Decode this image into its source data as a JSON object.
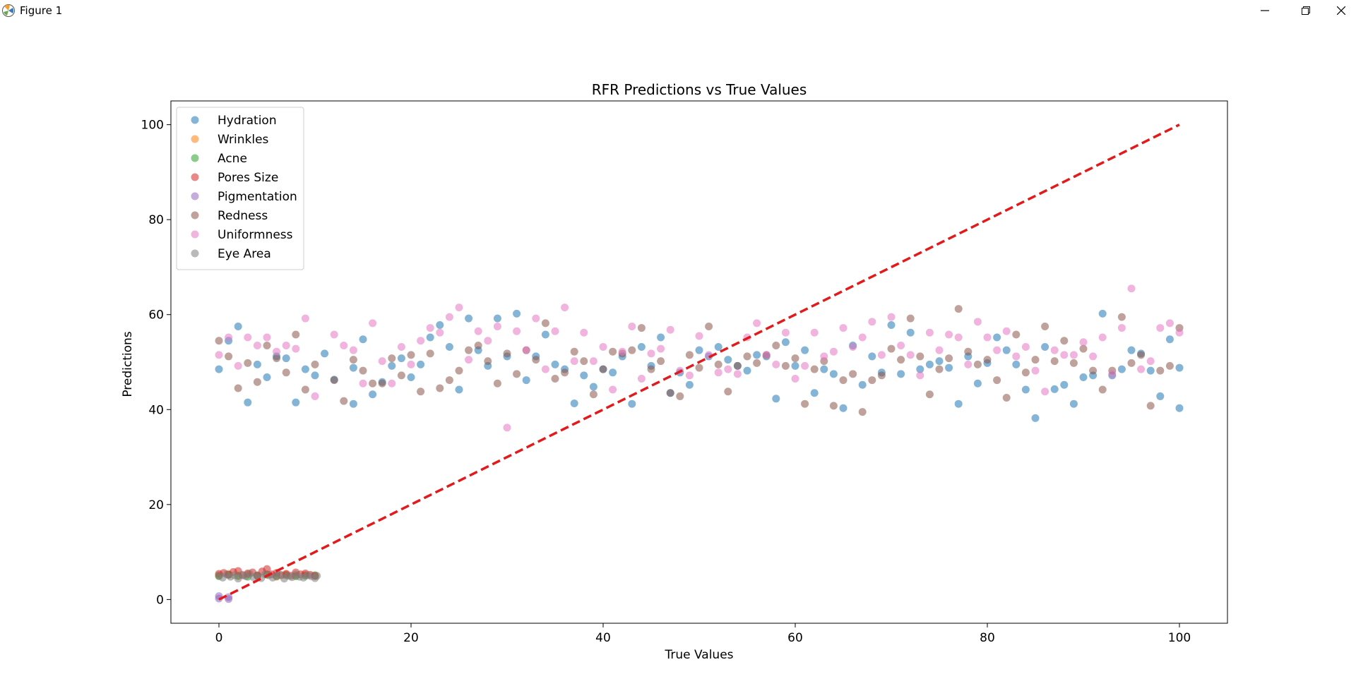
{
  "window": {
    "title": "Figure 1",
    "icons": [
      "matplotlib-logo",
      "minimize-icon",
      "maximize-icon",
      "close-icon"
    ]
  },
  "chart_data": {
    "type": "scatter",
    "title": "RFR Predictions vs True Values",
    "xlabel": "True Values",
    "ylabel": "Predictions",
    "xlim": [
      -5,
      105
    ],
    "ylim": [
      -5,
      105
    ],
    "xticks": [
      0,
      20,
      40,
      60,
      80,
      100
    ],
    "yticks": [
      0,
      20,
      40,
      60,
      80,
      100
    ],
    "legend_position": "top-left",
    "reference_line": {
      "x": [
        0,
        100
      ],
      "y": [
        0,
        100
      ],
      "style": "dashed",
      "color": "#e31a1c"
    },
    "series": [
      {
        "name": "Hydration",
        "color": "#1f77b4",
        "x": [
          0,
          1,
          2,
          3,
          4,
          5,
          6,
          7,
          8,
          9,
          10,
          11,
          12,
          14,
          14,
          15,
          16,
          17,
          18,
          19,
          20,
          21,
          22,
          23,
          24,
          25,
          26,
          27,
          28,
          29,
          30,
          31,
          32,
          33,
          34,
          35,
          36,
          37,
          38,
          39,
          40,
          41,
          42,
          43,
          44,
          45,
          46,
          47,
          48,
          49,
          50,
          51,
          52,
          53,
          54,
          55,
          56,
          57,
          58,
          59,
          60,
          61,
          62,
          63,
          64,
          65,
          66,
          67,
          68,
          69,
          70,
          71,
          72,
          73,
          74,
          75,
          76,
          77,
          78,
          79,
          80,
          81,
          82,
          83,
          84,
          85,
          86,
          87,
          88,
          89,
          90,
          91,
          92,
          93,
          94,
          95,
          96,
          97,
          98,
          99,
          100,
          100
        ],
        "y": [
          48.5,
          54.5,
          57.5,
          41.5,
          49.5,
          46.8,
          51.2,
          50.8,
          41.5,
          48.5,
          47.2,
          51.8,
          46.3,
          41.2,
          48.8,
          54.8,
          43.2,
          45.8,
          49.2,
          50.8,
          46.8,
          49.5,
          55.2,
          57.8,
          53.2,
          44.2,
          59.2,
          52.5,
          49.2,
          59.2,
          51.2,
          60.2,
          46.2,
          51.2,
          55.8,
          49.5,
          48.5,
          41.3,
          47.2,
          44.8,
          48.5,
          47.8,
          51.2,
          41.2,
          53.2,
          49.2,
          55.2,
          43.5,
          47.8,
          45.2,
          52.5,
          51.2,
          53.2,
          50.5,
          49.2,
          48.2,
          51.5,
          51.2,
          42.3,
          54.2,
          49.2,
          52.5,
          43.5,
          48.5,
          47.5,
          40.3,
          53.5,
          45.2,
          51.2,
          47.8,
          57.8,
          47.5,
          56.2,
          48.5,
          49.5,
          50.2,
          48.8,
          41.2,
          51.2,
          45.5,
          49.8,
          55.2,
          52.5,
          49.5,
          44.2,
          38.2,
          53.2,
          44.3,
          45.2,
          41.2,
          46.8,
          47.2,
          60.2,
          47.2,
          48.5,
          52.5,
          51.8,
          48.2,
          42.8,
          54.8,
          40.3,
          48.8
        ]
      },
      {
        "name": "Wrinkles",
        "color": "#ff7f0e",
        "x": [
          0,
          1,
          2,
          3,
          4,
          5,
          6,
          7,
          8,
          9,
          10
        ],
        "y": [
          5.1,
          5.4,
          4.9,
          5.3,
          5.0,
          5.2,
          4.8,
          5.3,
          5.0,
          5.2,
          4.9
        ]
      },
      {
        "name": "Acne",
        "color": "#2ca02c",
        "x": [
          0,
          1,
          2,
          3,
          4,
          5,
          6,
          7,
          8,
          9,
          10
        ],
        "y": [
          4.9,
          5.2,
          5.0,
          4.8,
          5.1,
          5.3,
          5.0,
          5.1,
          4.9,
          5.0,
          5.1
        ]
      },
      {
        "name": "Pores Size",
        "color": "#d62728",
        "x": [
          0,
          0.5,
          1,
          1.5,
          2,
          2.5,
          3,
          3.5,
          4,
          4.5,
          5,
          5.5,
          6,
          6.5,
          7,
          7.5,
          8,
          8.5,
          9,
          9.5,
          10
        ],
        "y": [
          5.4,
          5.6,
          5.2,
          5.8,
          6.0,
          5.1,
          5.5,
          5.7,
          5.0,
          5.9,
          6.4,
          5.3,
          5.6,
          5.1,
          5.4,
          5.0,
          5.7,
          5.3,
          5.5,
          5.2,
          5.0
        ]
      },
      {
        "name": "Pigmentation",
        "color": "#9467bd",
        "x": [
          0,
          0,
          1,
          1
        ],
        "y": [
          0.2,
          0.7,
          0.1,
          0.5
        ]
      },
      {
        "name": "Redness",
        "color": "#8c564b",
        "x": [
          0,
          1,
          2,
          3,
          4,
          5,
          6,
          7,
          8,
          9,
          10,
          12,
          13,
          14,
          15,
          16,
          17,
          18,
          19,
          20,
          21,
          22,
          23,
          24,
          25,
          26,
          27,
          28,
          29,
          30,
          31,
          32,
          33,
          34,
          35,
          36,
          37,
          38,
          39,
          40,
          41,
          42,
          43,
          44,
          45,
          46,
          47,
          48,
          49,
          50,
          51,
          52,
          53,
          54,
          55,
          56,
          57,
          58,
          59,
          60,
          61,
          62,
          63,
          64,
          65,
          66,
          67,
          68,
          69,
          70,
          71,
          72,
          73,
          74,
          75,
          76,
          77,
          78,
          79,
          80,
          81,
          82,
          83,
          84,
          85,
          86,
          87,
          88,
          89,
          90,
          91,
          92,
          93,
          94,
          95,
          96,
          97,
          98,
          99,
          100
        ],
        "y": [
          54.5,
          51.2,
          44.5,
          49.8,
          45.8,
          53.5,
          50.8,
          47.8,
          55.8,
          44.2,
          49.5,
          46.2,
          41.8,
          50.5,
          48.2,
          45.5,
          45.5,
          50.8,
          47.2,
          51.5,
          43.8,
          51.8,
          44.5,
          46.2,
          48.2,
          52.5,
          53.5,
          50.2,
          45.5,
          51.8,
          47.5,
          52.5,
          50.5,
          58.2,
          46.5,
          47.8,
          52.2,
          50.2,
          43.2,
          48.5,
          52.2,
          51.8,
          52.5,
          57.2,
          48.5,
          50.2,
          43.5,
          42.8,
          51.5,
          48.8,
          57.5,
          49.5,
          43.8,
          49.2,
          51.2,
          49.8,
          51.5,
          53.5,
          49.2,
          50.8,
          41.2,
          48.5,
          50.2,
          40.8,
          46.2,
          47.5,
          39.5,
          46.2,
          47.2,
          52.8,
          50.5,
          59.2,
          51.2,
          43.2,
          48.5,
          50.8,
          61.2,
          52.2,
          49.5,
          50.5,
          46.2,
          42.5,
          55.8,
          47.8,
          50.5,
          57.5,
          50.2,
          54.5,
          49.8,
          52.8,
          48.2,
          44.2,
          48.2,
          59.5,
          49.8,
          51.5,
          40.8,
          48.2,
          49.2,
          57.2
        ]
      },
      {
        "name": "Uniformness",
        "color": "#e377c2",
        "x": [
          0,
          1,
          2,
          3,
          4,
          5,
          6,
          7,
          8,
          9,
          10,
          12,
          13,
          14,
          15,
          16,
          17,
          18,
          19,
          20,
          21,
          22,
          23,
          24,
          25,
          26,
          27,
          28,
          29,
          30,
          31,
          32,
          33,
          34,
          35,
          36,
          37,
          38,
          39,
          40,
          41,
          42,
          43,
          44,
          45,
          46,
          47,
          48,
          49,
          50,
          51,
          52,
          53,
          54,
          55,
          56,
          57,
          58,
          59,
          60,
          61,
          62,
          63,
          64,
          65,
          66,
          67,
          68,
          69,
          70,
          71,
          72,
          73,
          74,
          75,
          76,
          77,
          78,
          79,
          80,
          81,
          82,
          83,
          84,
          85,
          86,
          87,
          88,
          89,
          90,
          91,
          92,
          93,
          94,
          95,
          96,
          97,
          98,
          99,
          100
        ],
        "y": [
          51.5,
          55.2,
          49.2,
          55.2,
          53.5,
          55.2,
          52.2,
          53.5,
          52.8,
          59.2,
          42.8,
          55.8,
          53.5,
          52.5,
          45.5,
          58.2,
          50.2,
          45.5,
          53.2,
          49.5,
          54.5,
          57.2,
          56.2,
          59.5,
          61.5,
          50.5,
          56.5,
          54.5,
          57.5,
          36.2,
          56.5,
          52.5,
          59.2,
          48.5,
          56.5,
          61.5,
          50.2,
          56.2,
          50.2,
          53.2,
          44.2,
          52.2,
          57.5,
          46.5,
          51.8,
          52.8,
          56.8,
          48.2,
          47.2,
          55.5,
          51.5,
          47.8,
          48.5,
          47.5,
          55.2,
          58.2,
          51.5,
          49.5,
          56.2,
          46.5,
          49.2,
          56.2,
          51.2,
          52.2,
          57.2,
          53.2,
          55.2,
          58.5,
          51.5,
          59.5,
          53.5,
          51.5,
          47.2,
          56.2,
          52.5,
          55.8,
          55.2,
          49.5,
          58.5,
          55.2,
          52.5,
          56.5,
          51.2,
          53.2,
          48.2,
          43.8,
          52.5,
          51.5,
          51.5,
          54.2,
          51.2,
          55.2,
          47.5,
          57.2,
          65.5,
          48.5,
          50.2,
          57.2,
          58.2,
          56.2
        ]
      },
      {
        "name": "Eye Area",
        "color": "#7f7f7f",
        "x": [
          0,
          0.4,
          0.8,
          1.2,
          1.6,
          2,
          2.4,
          2.8,
          3.2,
          3.6,
          4,
          4.4,
          4.8,
          5.2,
          5.6,
          6,
          6.4,
          6.8,
          7.2,
          7.6,
          8,
          8.4,
          8.8,
          9.2,
          9.6,
          10,
          10.2
        ],
        "y": [
          5.0,
          4.6,
          5.3,
          4.8,
          5.1,
          4.4,
          5.2,
          4.9,
          5.4,
          4.7,
          5.0,
          4.5,
          5.3,
          5.1,
          4.6,
          4.9,
          5.2,
          4.4,
          5.0,
          4.7,
          5.3,
          4.8,
          4.6,
          5.1,
          4.9,
          4.5,
          5.0
        ]
      }
    ]
  }
}
